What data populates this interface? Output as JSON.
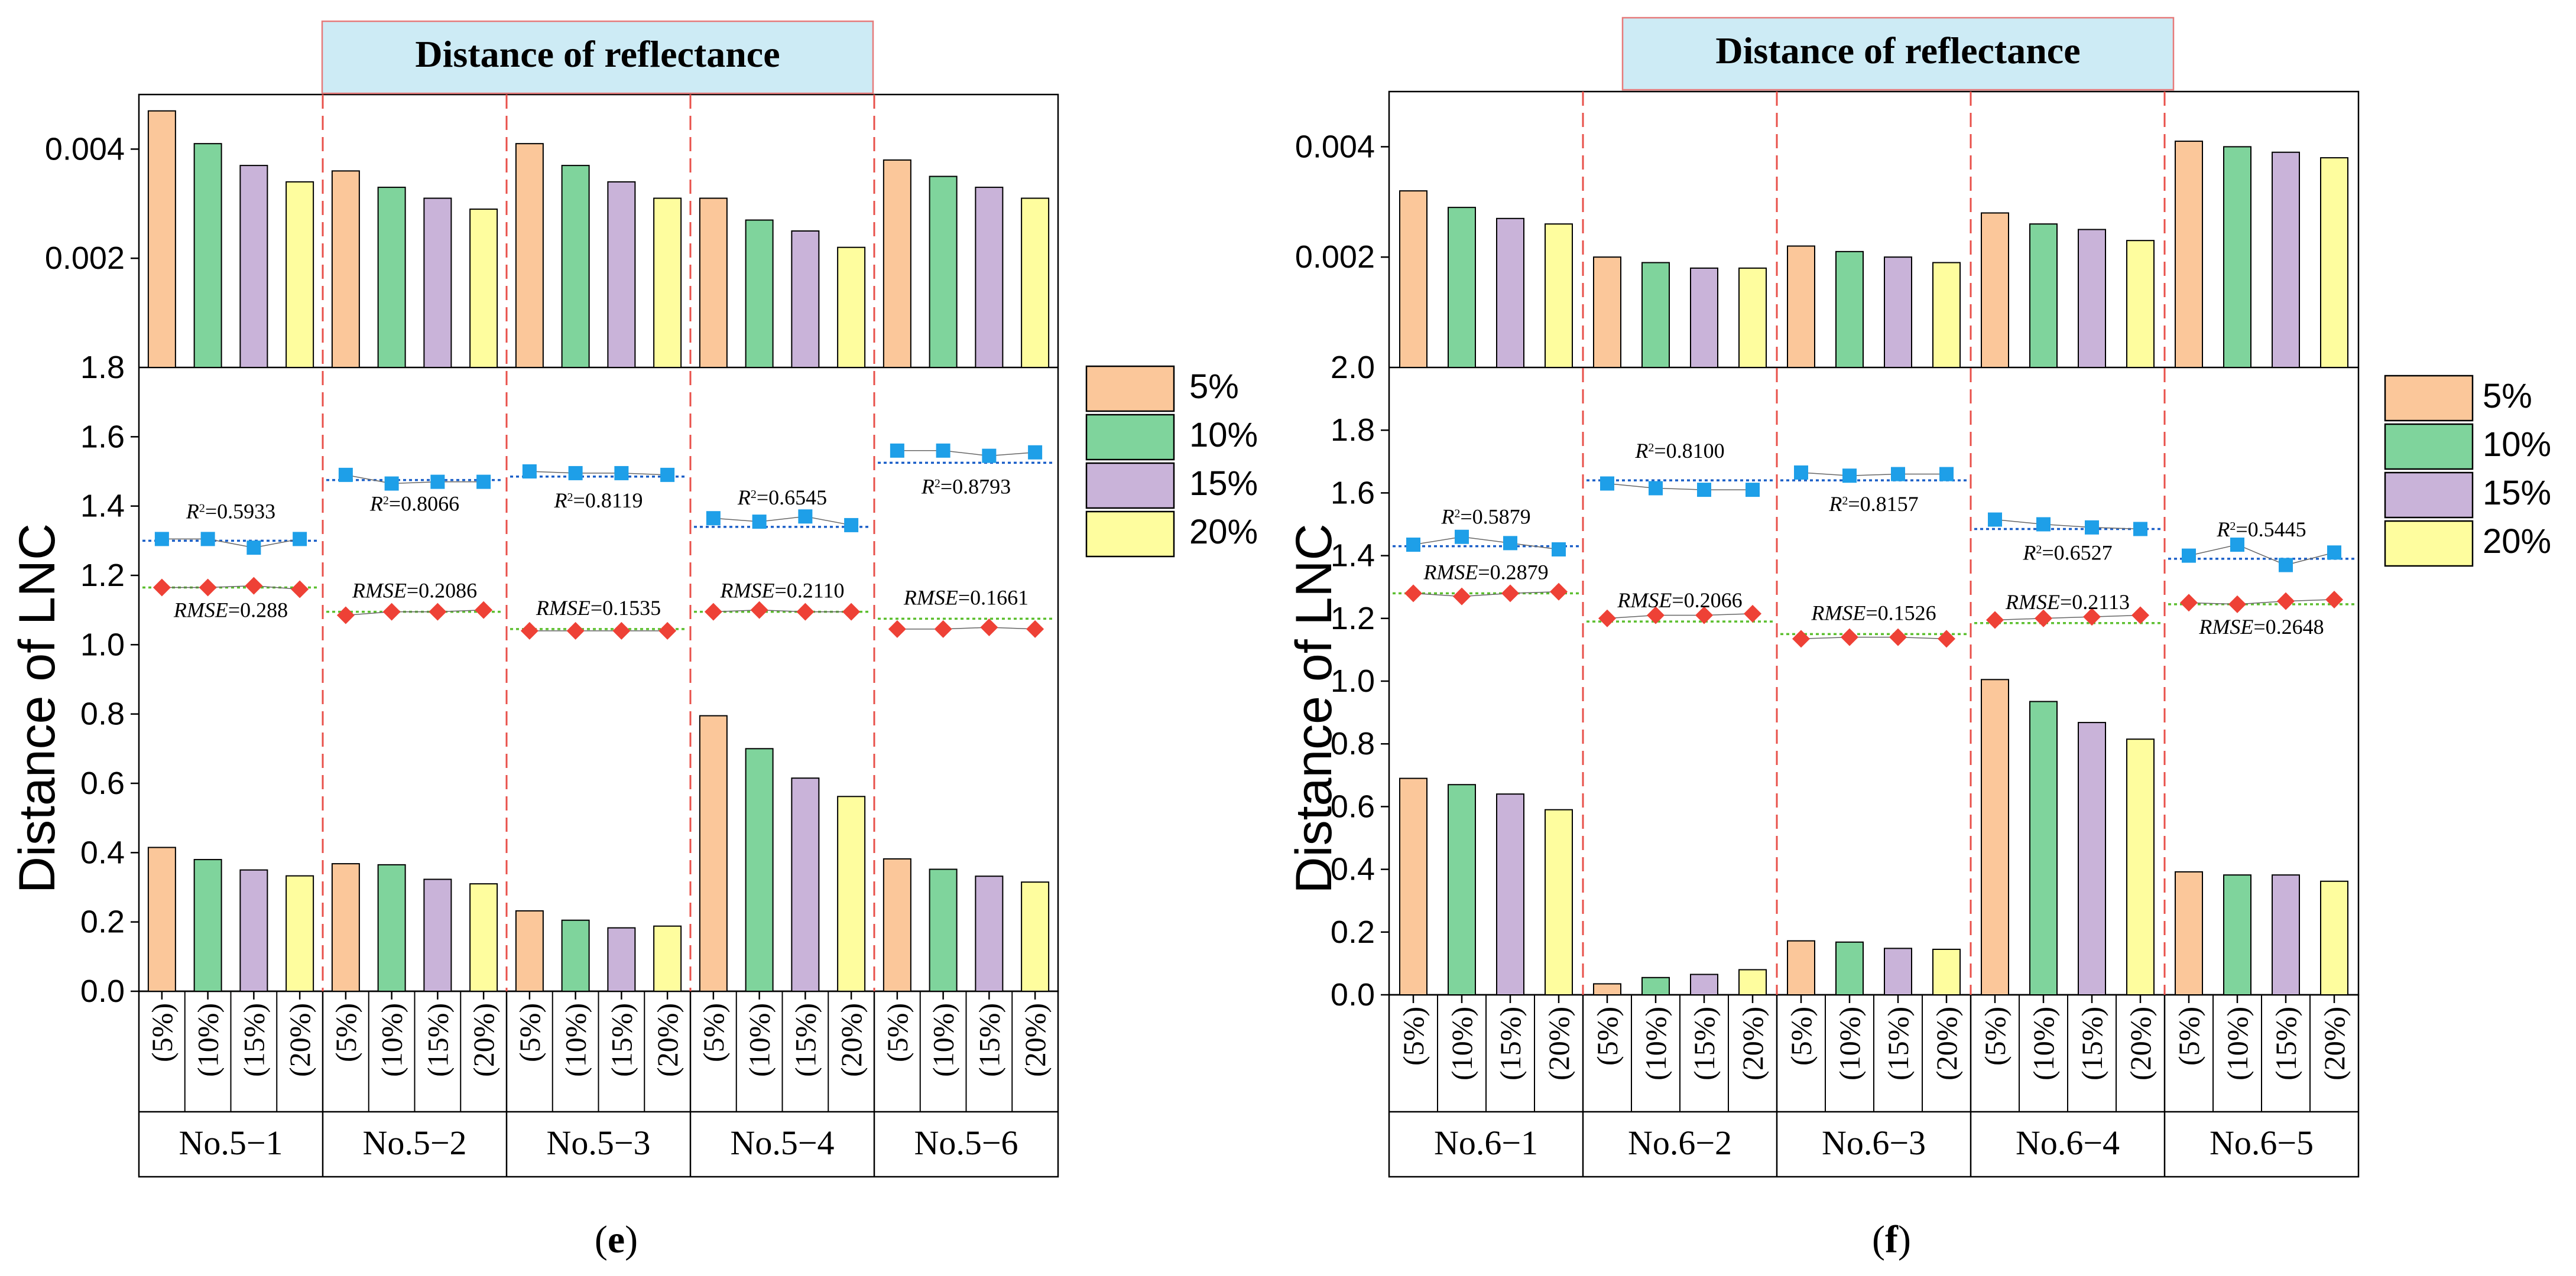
{
  "colors": {
    "pct5": "#FBC79A",
    "pct10": "#7FD49C",
    "pct15": "#C9B3D9",
    "pct20": "#FEFD9E",
    "divider": "#E8504A",
    "title_bg": "#CDEBF5",
    "title_border": "#E67A7A",
    "r2_marker": "#1E9FE8",
    "rmse_marker": "#EE4136",
    "r2_fit": "#1B5FC8",
    "rmse_fit": "#5CBF2F"
  },
  "legend": {
    "items": [
      "5%",
      "10%",
      "15%",
      "20%"
    ]
  },
  "chart_data": [
    {
      "type": "bar",
      "panel_label": "e",
      "title": "Distance of reflectance",
      "ylabel": "Distance of LNC",
      "top_axis": {
        "ylim": [
          0,
          0.005
        ],
        "ticks": [
          "0.002",
          "0.004"
        ],
        "bottom_tick_label": "1.8"
      },
      "bottom_axis": {
        "ylim": [
          0,
          1.8
        ],
        "ticks": [
          "0.0",
          "0.2",
          "0.4",
          "0.6",
          "0.8",
          "1.0",
          "1.2",
          "1.4",
          "1.6",
          "1.8"
        ]
      },
      "bar_labels": [
        "(5%)",
        "(10%)",
        "(15%)",
        "(20%)"
      ],
      "groups": [
        {
          "name": "No.5−1",
          "reflectance": [
            0.0047,
            0.0041,
            0.0037,
            0.0034
          ],
          "lnc": [
            0.415,
            0.38,
            0.35,
            0.333
          ],
          "r2_label": "0.5933",
          "r2_points": [
            1.305,
            1.305,
            1.28,
            1.305
          ],
          "r2_fit": 1.3,
          "rmse_label": "0.288",
          "rmse_points": [
            1.165,
            1.165,
            1.17,
            1.16
          ],
          "rmse_fit": 1.165
        },
        {
          "name": "No.5−2",
          "reflectance": [
            0.0036,
            0.0033,
            0.0031,
            0.0029
          ],
          "lnc": [
            0.368,
            0.365,
            0.323,
            0.31
          ],
          "r2_label": "0.8066",
          "r2_points": [
            1.49,
            1.465,
            1.47,
            1.47
          ],
          "r2_fit": 1.475,
          "rmse_label": "0.2086",
          "rmse_points": [
            1.085,
            1.095,
            1.095,
            1.1
          ],
          "rmse_fit": 1.095
        },
        {
          "name": "No.5−3",
          "reflectance": [
            0.0041,
            0.0037,
            0.0034,
            0.0031
          ],
          "lnc": [
            0.232,
            0.205,
            0.183,
            0.188
          ],
          "r2_label": "0.8119",
          "r2_points": [
            1.5,
            1.495,
            1.495,
            1.49
          ],
          "r2_fit": 1.485,
          "rmse_label": "0.1535",
          "rmse_points": [
            1.04,
            1.04,
            1.04,
            1.04
          ],
          "rmse_fit": 1.045
        },
        {
          "name": "No.5−4",
          "reflectance": [
            0.0031,
            0.0027,
            0.0025,
            0.0022
          ],
          "lnc": [
            0.795,
            0.7,
            0.615,
            0.562
          ],
          "r2_label": "0.6545",
          "r2_points": [
            1.365,
            1.355,
            1.37,
            1.345
          ],
          "r2_fit": 1.34,
          "rmse_label": "0.2110",
          "rmse_points": [
            1.095,
            1.1,
            1.095,
            1.095
          ],
          "rmse_fit": 1.095
        },
        {
          "name": "No.5−6",
          "reflectance": [
            0.0038,
            0.0035,
            0.0033,
            0.0031
          ],
          "lnc": [
            0.382,
            0.352,
            0.332,
            0.315
          ],
          "r2_label": "0.8793",
          "r2_points": [
            1.56,
            1.56,
            1.545,
            1.555
          ],
          "r2_fit": 1.525,
          "rmse_label": "0.1661",
          "rmse_points": [
            1.045,
            1.045,
            1.05,
            1.045
          ],
          "rmse_fit": 1.075
        }
      ]
    },
    {
      "type": "bar",
      "panel_label": "f",
      "title": "Distance of reflectance",
      "ylabel": "Distance of LNC",
      "top_axis": {
        "ylim": [
          0,
          0.005
        ],
        "ticks": [
          "0.002",
          "0.004"
        ],
        "bottom_tick_label": "2.0"
      },
      "bottom_axis": {
        "ylim": [
          0,
          2.0
        ],
        "ticks": [
          "0.0",
          "0.2",
          "0.4",
          "0.6",
          "0.8",
          "1.0",
          "1.2",
          "1.4",
          "1.6",
          "1.8",
          "2.0"
        ]
      },
      "bar_labels": [
        "(5%)",
        "(10%)",
        "(15%)",
        "(20%)"
      ],
      "groups": [
        {
          "name": "No.6−1",
          "reflectance": [
            0.0032,
            0.0029,
            0.0027,
            0.0026
          ],
          "lnc": [
            0.69,
            0.67,
            0.64,
            0.59
          ],
          "r2_label": "0.5879",
          "r2_points": [
            1.435,
            1.46,
            1.44,
            1.42
          ],
          "r2_fit": 1.43,
          "rmse_label": "0.2879",
          "rmse_points": [
            1.28,
            1.27,
            1.28,
            1.285
          ],
          "rmse_fit": 1.28
        },
        {
          "name": "No.6−2",
          "reflectance": [
            0.002,
            0.0019,
            0.0018,
            0.0018
          ],
          "lnc": [
            0.035,
            0.055,
            0.065,
            0.08
          ],
          "r2_label": "0.8100",
          "r2_points": [
            1.63,
            1.615,
            1.61,
            1.61
          ],
          "r2_fit": 1.64,
          "rmse_label": "0.2066",
          "rmse_points": [
            1.2,
            1.21,
            1.21,
            1.215
          ],
          "rmse_fit": 1.19
        },
        {
          "name": "No.6−3",
          "reflectance": [
            0.0022,
            0.0021,
            0.002,
            0.0019
          ],
          "lnc": [
            0.172,
            0.168,
            0.148,
            0.145
          ],
          "r2_label": "0.8157",
          "r2_points": [
            1.665,
            1.655,
            1.66,
            1.66
          ],
          "r2_fit": 1.64,
          "rmse_label": "0.1526",
          "rmse_points": [
            1.135,
            1.14,
            1.14,
            1.135
          ],
          "rmse_fit": 1.15
        },
        {
          "name": "No.6−4",
          "reflectance": [
            0.0028,
            0.0026,
            0.0025,
            0.0023
          ],
          "lnc": [
            1.005,
            0.935,
            0.868,
            0.815
          ],
          "r2_label": "0.6527",
          "r2_points": [
            1.515,
            1.5,
            1.49,
            1.485
          ],
          "r2_fit": 1.485,
          "rmse_label": "0.2113",
          "rmse_points": [
            1.195,
            1.2,
            1.205,
            1.21
          ],
          "rmse_fit": 1.185
        },
        {
          "name": "No.6−5",
          "reflectance": [
            0.0041,
            0.004,
            0.0039,
            0.0038
          ],
          "lnc": [
            0.392,
            0.382,
            0.382,
            0.362
          ],
          "r2_label": "0.5445",
          "r2_points": [
            1.4,
            1.435,
            1.37,
            1.41
          ],
          "r2_fit": 1.39,
          "rmse_label": "0.2648",
          "rmse_points": [
            1.25,
            1.245,
            1.255,
            1.26
          ],
          "rmse_fit": 1.245
        }
      ]
    }
  ]
}
